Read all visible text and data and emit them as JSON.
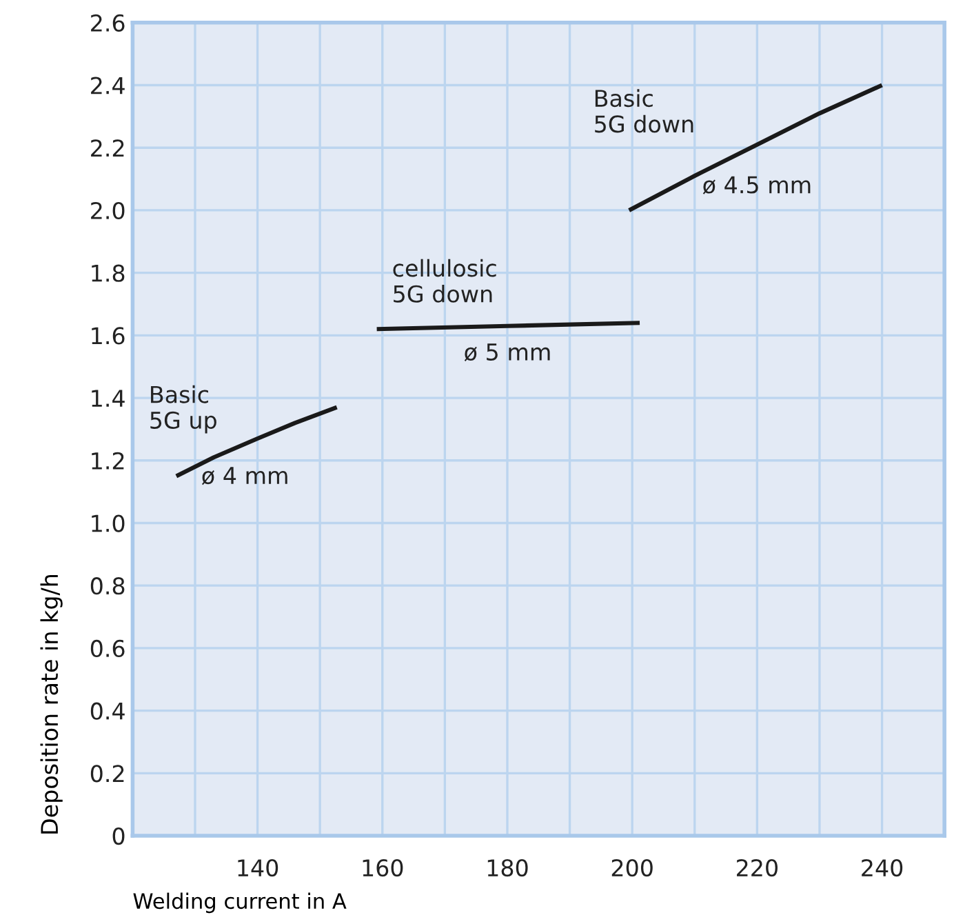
{
  "chart_data": {
    "type": "line",
    "xlabel": "Welding current in A",
    "ylabel": "Deposition rate in kg/h",
    "series": [
      {
        "name": "Basic\n5G up",
        "color": "#1a1a1a",
        "x": [
          127,
          133,
          140,
          146,
          152.7
        ],
        "values": [
          1.15,
          1.21,
          1.27,
          1.32,
          1.37
        ]
      },
      {
        "name": "cellulosic\n5G down",
        "color": "#1a1a1a",
        "x": [
          159.1,
          180,
          201.2
        ],
        "values": [
          1.62,
          1.63,
          1.64
        ]
      },
      {
        "name": "Basic\n5G down",
        "color": "#1a1a1a",
        "x": [
          199.5,
          210,
          220,
          230,
          240
        ],
        "values": [
          2.0,
          2.11,
          2.21,
          2.31,
          2.4
        ]
      }
    ],
    "annotations": [
      "ø 4 mm",
      "ø 5 mm",
      "ø 4.5 mm"
    ],
    "xlim": [
      120,
      250
    ],
    "ylim": [
      0,
      2.6
    ],
    "xticks": [
      {
        "value": 130,
        "label": null
      },
      140,
      {
        "value": 150,
        "label": null
      },
      160,
      {
        "value": 170,
        "label": null
      },
      180,
      {
        "value": 190,
        "label": null
      },
      200,
      {
        "value": 210,
        "label": null
      },
      220,
      {
        "value": 230,
        "label": null
      },
      240
    ],
    "yticks": [
      0,
      0.2,
      0.4,
      0.6,
      0.8,
      {
        "value": 1,
        "label": "1.0"
      },
      1.2,
      1.4,
      1.6,
      1.8,
      {
        "value": 2,
        "label": "2.0"
      },
      2.2,
      2.4,
      2.6
    ],
    "grid": true,
    "marker": "none",
    "line_style": "solid"
  }
}
